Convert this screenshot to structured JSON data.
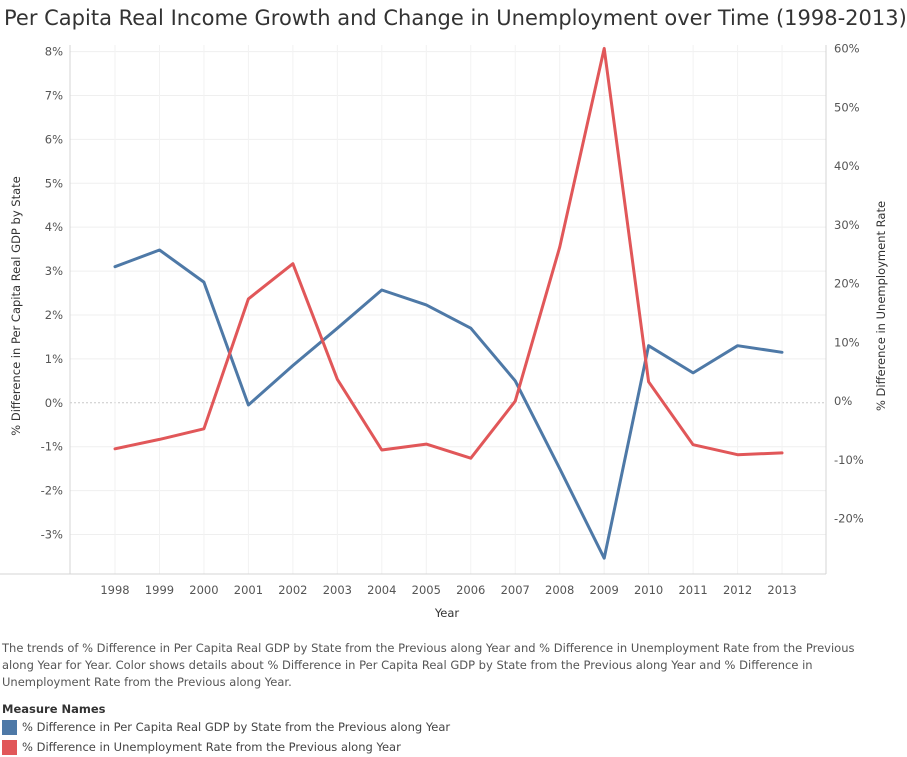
{
  "title": "Per Capita Real Income Growth and Change in Unemployment over Time (1998-2013)",
  "caption": "The trends of % Difference in Per Capita Real GDP by State from the Previous along Year and % Difference in Unemployment Rate from the Previous along Year for Year.  Color shows details about % Difference in Per Capita Real GDP by State from the Previous along Year and % Difference in Unemployment Rate from the Previous along Year.",
  "legend": {
    "title": "Measure Names",
    "items": [
      {
        "label": "% Difference in Per Capita Real GDP by State from the Previous along Year",
        "color": "#4e79a7"
      },
      {
        "label": "% Difference in Unemployment Rate from the Previous along Year",
        "color": "#e15759"
      }
    ]
  },
  "chart_data": {
    "type": "line",
    "title": "Per Capita Real Income Growth and Change in Unemployment over Time (1998-2013)",
    "xlabel": "Year",
    "ylabel_left": "% Difference in Per Capita Real GDP by State",
    "ylabel_right": "% Difference in Unemployment Rate",
    "categories": [
      "1998",
      "1999",
      "2000",
      "2001",
      "2002",
      "2003",
      "2004",
      "2005",
      "2006",
      "2007",
      "2008",
      "2009",
      "2010",
      "2011",
      "2012",
      "2013"
    ],
    "left_axis": {
      "ticks": [
        8,
        7,
        6,
        5,
        4,
        3,
        2,
        1,
        0,
        -1,
        -2,
        -3
      ],
      "tick_labels": [
        "8%",
        "7%",
        "6%",
        "5%",
        "4%",
        "3%",
        "2%",
        "1%",
        "0%",
        "-1%",
        "-2%",
        "-3%"
      ],
      "range": [
        -3.9,
        8.15
      ]
    },
    "right_axis": {
      "ticks": [
        60,
        50,
        40,
        30,
        20,
        10,
        0,
        -10,
        -20
      ],
      "tick_labels": [
        "60%",
        "50%",
        "40%",
        "30%",
        "20%",
        "10%",
        "0%",
        "-10%",
        "-20%"
      ],
      "range": [
        -29.4,
        60.6
      ]
    },
    "grid": true,
    "series": [
      {
        "name": "% Difference in Per Capita Real GDP by State from the Previous along Year",
        "axis": "left",
        "color": "#4e79a7",
        "values": [
          3.1,
          3.48,
          2.75,
          -0.05,
          0.85,
          1.7,
          2.57,
          2.23,
          1.7,
          0.5,
          -1.5,
          -3.54,
          1.3,
          0.68,
          1.3,
          1.15
        ]
      },
      {
        "name": "% Difference in Unemployment Rate from the Previous along Year",
        "axis": "right",
        "color": "#e15759",
        "values": [
          -8.1,
          -6.5,
          -4.7,
          17.4,
          23.4,
          3.7,
          -8.3,
          -7.3,
          -9.7,
          0.0,
          26.2,
          60.0,
          3.3,
          -7.4,
          -9.1,
          -8.8
        ]
      }
    ]
  }
}
